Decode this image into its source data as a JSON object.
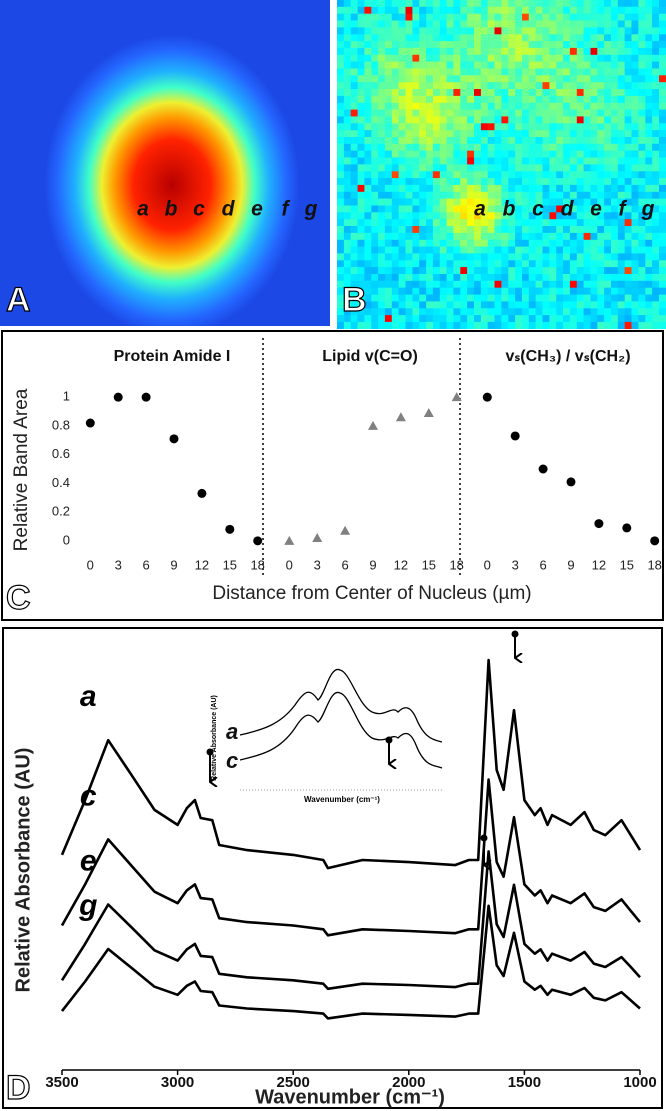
{
  "panel_a": {
    "label": "A",
    "points": [
      "a",
      "b",
      "c",
      "d",
      "e",
      "f",
      "g"
    ]
  },
  "panel_b": {
    "label": "B",
    "points": [
      "a",
      "b",
      "c",
      "d",
      "e",
      "f",
      "g"
    ]
  },
  "panel_c": {
    "label": "C",
    "ylabel": "Relative Band Area",
    "xlabel": "Distance from Center of Nucleus (µm)"
  },
  "panel_d": {
    "label": "D",
    "inset": {
      "series": [
        "a",
        "c"
      ],
      "ylabel": "Relative Absorbance (AU)",
      "xlabel": "Wavenumber (cm⁻¹)"
    }
  },
  "chart_data": [
    {
      "type": "scatter",
      "title": "Protein Amide I",
      "x": [
        0,
        3,
        6,
        9,
        12,
        15,
        18
      ],
      "values": [
        0.82,
        1.0,
        1.0,
        0.71,
        0.33,
        0.08,
        0.0
      ],
      "color": "#000000",
      "marker": "circle",
      "xlim": [
        -1,
        19
      ],
      "xticks": [
        0,
        3,
        6,
        9,
        12,
        15,
        18
      ],
      "ylim": [
        -0.05,
        1.05
      ],
      "yticks": [
        0,
        0.2,
        0.4,
        0.6,
        0.8,
        1
      ]
    },
    {
      "type": "scatter",
      "title": "Lipid v(C=O)",
      "x": [
        0,
        3,
        6,
        9,
        12,
        15,
        18
      ],
      "values": [
        0.0,
        0.02,
        0.07,
        0.8,
        0.86,
        0.89,
        1.0
      ],
      "color": "#808080",
      "marker": "triangle",
      "xlim": [
        -1,
        19
      ],
      "xticks": [
        0,
        3,
        6,
        9,
        12,
        15,
        18
      ],
      "ylim": [
        -0.05,
        1.05
      ]
    },
    {
      "type": "scatter",
      "title": "vₛ(CH₃) / vₛ(CH₂)",
      "x": [
        0,
        3,
        6,
        9,
        12,
        15,
        18
      ],
      "values": [
        1.0,
        0.73,
        0.5,
        0.41,
        0.12,
        0.09,
        0.0
      ],
      "color": "#000000",
      "marker": "circle",
      "xlim": [
        -1,
        19
      ],
      "xticks": [
        0,
        3,
        6,
        9,
        12,
        15,
        18
      ],
      "ylim": [
        -0.05,
        1.05
      ]
    },
    {
      "type": "line",
      "xlabel": "Wavenumber (cm⁻¹)",
      "ylabel": "Relative Absorbance (AU)",
      "xlim": [
        3500,
        1000
      ],
      "xticks": [
        3500,
        3000,
        2500,
        2000,
        1500,
        1000
      ],
      "ylim": [
        0,
        1
      ],
      "x": [
        3500,
        3400,
        3300,
        3200,
        3100,
        3000,
        2960,
        2925,
        2900,
        2850,
        2820,
        2700,
        2500,
        2370,
        2350,
        2200,
        2000,
        1800,
        1740,
        1700,
        1655,
        1620,
        1590,
        1545,
        1500,
        1455,
        1430,
        1400,
        1380,
        1300,
        1240,
        1200,
        1150,
        1080,
        1040,
        1000
      ],
      "series": [
        {
          "name": "a",
          "color": "#000000",
          "values": [
            0.498,
            0.626,
            0.766,
            0.685,
            0.603,
            0.568,
            0.607,
            0.626,
            0.584,
            0.579,
            0.521,
            0.509,
            0.498,
            0.486,
            0.467,
            0.486,
            0.481,
            0.474,
            0.486,
            0.486,
            0.953,
            0.696,
            0.65,
            0.836,
            0.626,
            0.591,
            0.607,
            0.568,
            0.591,
            0.568,
            0.598,
            0.556,
            0.544,
            0.579,
            0.544,
            0.509
          ]
        },
        {
          "name": "c",
          "color": "#000000",
          "values": [
            0.333,
            0.429,
            0.534,
            0.473,
            0.412,
            0.385,
            0.415,
            0.429,
            0.397,
            0.394,
            0.35,
            0.341,
            0.333,
            0.324,
            0.31,
            0.324,
            0.32,
            0.315,
            0.324,
            0.324,
            0.674,
            0.481,
            0.447,
            0.586,
            0.429,
            0.403,
            0.415,
            0.385,
            0.403,
            0.385,
            0.408,
            0.376,
            0.367,
            0.394,
            0.367,
            0.341
          ]
        },
        {
          "name": "e",
          "color": "#000000",
          "values": [
            0.205,
            0.29,
            0.382,
            0.329,
            0.275,
            0.251,
            0.277,
            0.29,
            0.262,
            0.259,
            0.22,
            0.212,
            0.205,
            0.197,
            0.185,
            0.197,
            0.194,
            0.189,
            0.197,
            0.197,
            0.506,
            0.336,
            0.306,
            0.428,
            0.29,
            0.267,
            0.277,
            0.251,
            0.267,
            0.251,
            0.271,
            0.244,
            0.236,
            0.259,
            0.236,
            0.212
          ]
        },
        {
          "name": "g",
          "color": "#000000",
          "values": [
            0.133,
            0.202,
            0.278,
            0.234,
            0.19,
            0.171,
            0.192,
            0.202,
            0.18,
            0.177,
            0.146,
            0.139,
            0.133,
            0.127,
            0.116,
            0.127,
            0.124,
            0.12,
            0.127,
            0.127,
            0.379,
            0.24,
            0.215,
            0.316,
            0.202,
            0.183,
            0.192,
            0.171,
            0.183,
            0.171,
            0.187,
            0.164,
            0.158,
            0.177,
            0.158,
            0.139
          ]
        }
      ]
    }
  ]
}
